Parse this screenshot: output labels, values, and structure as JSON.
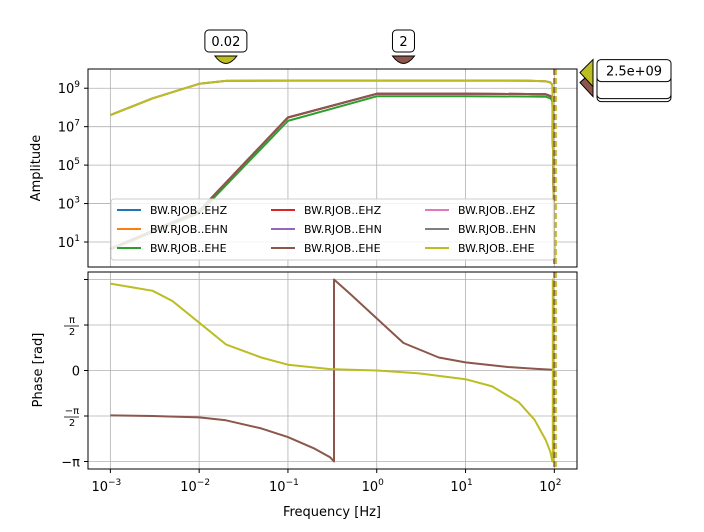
{
  "chart_data": [
    {
      "type": "line",
      "panel": "amplitude",
      "xlabel": "",
      "ylabel": "Amplitude",
      "xscale": "log",
      "yscale": "log",
      "xlim": [
        0.00056,
        180
      ],
      "ylim": [
        0.5,
        10000000000.0
      ],
      "grid": true,
      "legend_position": "lower-center",
      "y_ticks": [
        {
          "v": 10,
          "base": "10",
          "exp": "1"
        },
        {
          "v": 1000,
          "base": "10",
          "exp": "3"
        },
        {
          "v": 100000,
          "base": "10",
          "exp": "5"
        },
        {
          "v": 10000000,
          "base": "10",
          "exp": "7"
        },
        {
          "v": 1000000000,
          "base": "10",
          "exp": "9"
        }
      ],
      "series": [
        {
          "name": "BW.RJOB..EHZ",
          "color": "#1f77b4",
          "x": [
            0.001,
            0.01,
            0.1,
            1,
            10,
            50,
            80,
            90,
            95,
            100
          ],
          "y": [
            4.4,
            420,
            30000000,
            510000000,
            510000000,
            500000000,
            480000000,
            400000000,
            300000000,
            1
          ]
        },
        {
          "name": "BW.RJOB..EHN",
          "color": "#ff7f0e",
          "x": [
            0.001,
            0.01,
            0.1,
            1,
            10,
            50,
            80,
            90,
            95,
            100
          ],
          "y": [
            4.4,
            420,
            30000000,
            510000000,
            510000000,
            500000000,
            480000000,
            400000000,
            300000000,
            1
          ]
        },
        {
          "name": "BW.RJOB..EHE",
          "color": "#2ca02c",
          "x": [
            0.001,
            0.01,
            0.1,
            1,
            10,
            50,
            80,
            90,
            95,
            100
          ],
          "y": [
            4,
            320,
            20000000,
            380000000,
            380000000,
            370000000,
            360000000,
            300000000,
            220000000,
            1
          ]
        },
        {
          "name": "BW.RJOB..EHZ",
          "color": "#d62728",
          "x": [
            0.001,
            0.01,
            0.1,
            1,
            10,
            50,
            80,
            90,
            95,
            100
          ],
          "y": [
            4.4,
            420,
            30000000,
            510000000,
            510000000,
            500000000,
            480000000,
            400000000,
            300000000,
            1
          ]
        },
        {
          "name": "BW.RJOB..EHN",
          "color": "#9467bd",
          "x": [
            0.001,
            0.01,
            0.1,
            1,
            10,
            50,
            80,
            90,
            95,
            100
          ],
          "y": [
            4.4,
            420,
            30000000,
            510000000,
            510000000,
            500000000,
            480000000,
            400000000,
            300000000,
            1
          ]
        },
        {
          "name": "BW.RJOB..EHE",
          "color": "#8c564b",
          "x": [
            0.001,
            0.01,
            0.1,
            1,
            10,
            50,
            80,
            90,
            95,
            100
          ],
          "y": [
            4.4,
            420,
            30000000,
            510000000,
            510000000,
            500000000,
            480000000,
            400000000,
            300000000,
            1
          ]
        },
        {
          "name": "BW.RJOB..EHZ",
          "color": "#e377c2",
          "x": [
            0.001,
            0.003,
            0.01,
            0.02,
            0.1,
            1,
            10,
            50,
            80,
            90,
            95,
            100
          ],
          "y": [
            40000000,
            300000000,
            1700000000,
            2400000000,
            2500000000,
            2500000000,
            2500000000,
            2450000000,
            2300000000,
            2000000000,
            1500000000,
            1
          ]
        },
        {
          "name": "BW.RJOB..EHN",
          "color": "#7f7f7f",
          "x": [
            0.001,
            0.003,
            0.01,
            0.02,
            0.1,
            1,
            10,
            50,
            80,
            90,
            95,
            100
          ],
          "y": [
            40000000,
            300000000,
            1700000000,
            2400000000,
            2500000000,
            2500000000,
            2500000000,
            2450000000,
            2300000000,
            2000000000,
            1500000000,
            1
          ]
        },
        {
          "name": "BW.RJOB..EHE",
          "color": "#bcbd22",
          "x": [
            0.001,
            0.003,
            0.01,
            0.02,
            0.1,
            1,
            10,
            50,
            80,
            90,
            95,
            100
          ],
          "y": [
            40000000,
            300000000,
            1700000000,
            2400000000,
            2500000000,
            2500000000,
            2500000000,
            2450000000,
            2300000000,
            2000000000,
            1500000000,
            1
          ]
        }
      ],
      "annotations": [
        {
          "text": "0.02",
          "x": 0.02,
          "color": "#bcbd22",
          "kind": "corner-marker"
        },
        {
          "text": "2",
          "x": 2,
          "color": "#8c564b",
          "kind": "corner-marker"
        },
        {
          "text": "2.5e+09",
          "y": 2500000000,
          "color": "#bcbd22",
          "kind": "level-marker"
        }
      ],
      "vline": {
        "x": 100,
        "style": "dashed",
        "color": "#bcbd22"
      }
    },
    {
      "type": "line",
      "panel": "phase",
      "xlabel": "Frequency [Hz]",
      "ylabel": "Phase [rad]",
      "xscale": "log",
      "xlim": [
        0.00056,
        180
      ],
      "ylim": [
        -3.4,
        3.4
      ],
      "grid": true,
      "x_ticks": [
        {
          "v": 0.001,
          "base": "10",
          "exp": "−3"
        },
        {
          "v": 0.01,
          "base": "10",
          "exp": "−2"
        },
        {
          "v": 0.1,
          "base": "10",
          "exp": "−1"
        },
        {
          "v": 1,
          "base": "10",
          "exp": "0"
        },
        {
          "v": 10,
          "base": "10",
          "exp": "1"
        },
        {
          "v": 100,
          "base": "10",
          "exp": "2"
        }
      ],
      "y_ticks": [
        {
          "v": -3.14159,
          "label": "−π"
        },
        {
          "v": -1.5708,
          "label": "−π/2"
        },
        {
          "v": 0,
          "label": "0"
        },
        {
          "v": 1.5708,
          "label": "π/2"
        }
      ],
      "series": [
        {
          "name": "BW.RJOB..EHE",
          "color": "#8c564b",
          "x": [
            0.001,
            0.003,
            0.01,
            0.02,
            0.05,
            0.1,
            0.2,
            0.3,
            0.33,
            0.33,
            0.5,
            1,
            2,
            5,
            10,
            30,
            60,
            90,
            96
          ],
          "y": [
            -1.55,
            -1.57,
            -1.62,
            -1.72,
            -2.0,
            -2.3,
            -2.7,
            -3.0,
            -3.14,
            3.14,
            2.65,
            1.8,
            0.95,
            0.45,
            0.28,
            0.12,
            0.06,
            0.03,
            0.02
          ]
        },
        {
          "name": "BW.RJOB..EHE",
          "color": "#bcbd22",
          "x": [
            0.001,
            0.003,
            0.005,
            0.01,
            0.02,
            0.05,
            0.1,
            0.3,
            1,
            3,
            10,
            20,
            40,
            60,
            80,
            90,
            95,
            96,
            96,
            97,
            98,
            100
          ],
          "y": [
            3.0,
            2.75,
            2.4,
            1.65,
            0.9,
            0.45,
            0.2,
            0.05,
            0.0,
            -0.1,
            -0.3,
            -0.55,
            -1.1,
            -1.7,
            -2.4,
            -2.8,
            -3.14,
            -3.14,
            3.14,
            3.14,
            -3.14,
            -3.14
          ]
        }
      ]
    }
  ]
}
